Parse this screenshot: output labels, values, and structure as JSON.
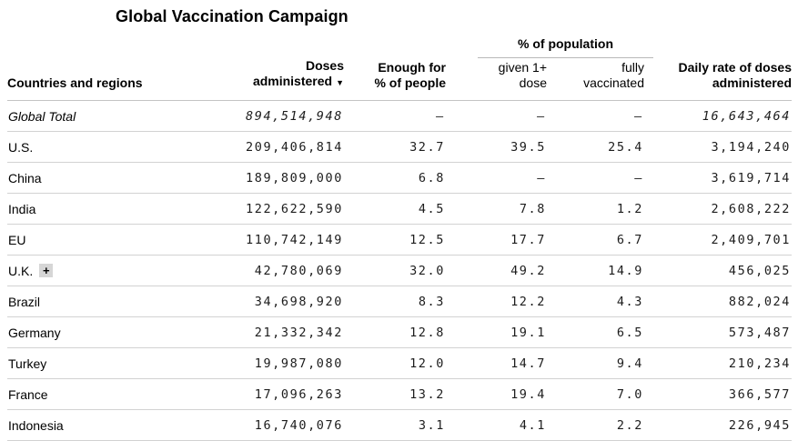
{
  "title": "Global Vaccination Campaign",
  "table": {
    "group_header": "% of population",
    "sort_icon": "▼",
    "sorted_by": "Doses administered",
    "sort_direction": "descending",
    "expand_icon": "+",
    "columns": [
      {
        "line1": "",
        "line2": "Countries and regions"
      },
      {
        "line1": "Doses",
        "line2": "administered"
      },
      {
        "line1": "Enough for",
        "line2": "% of people"
      },
      {
        "line1": "given 1+",
        "line2": "dose"
      },
      {
        "line1": "fully",
        "line2": "vaccinated"
      },
      {
        "line1": "Daily rate of doses",
        "line2": "administered"
      }
    ],
    "rows": [
      {
        "country": "Global Total",
        "doses": "894,514,948",
        "enough": "–",
        "given": "–",
        "fully": "–",
        "daily": "16,643,464",
        "italic": true
      },
      {
        "country": "U.S.",
        "doses": "209,406,814",
        "enough": "32.7",
        "given": "39.5",
        "fully": "25.4",
        "daily": "3,194,240"
      },
      {
        "country": "China",
        "doses": "189,809,000",
        "enough": "6.8",
        "given": "–",
        "fully": "–",
        "daily": "3,619,714"
      },
      {
        "country": "India",
        "doses": "122,622,590",
        "enough": "4.5",
        "given": "7.8",
        "fully": "1.2",
        "daily": "2,608,222"
      },
      {
        "country": "EU",
        "doses": "110,742,149",
        "enough": "12.5",
        "given": "17.7",
        "fully": "6.7",
        "daily": "2,409,701"
      },
      {
        "country": "U.K.",
        "expandable": true,
        "doses": "42,780,069",
        "enough": "32.0",
        "given": "49.2",
        "fully": "14.9",
        "daily": "456,025"
      },
      {
        "country": "Brazil",
        "doses": "34,698,920",
        "enough": "8.3",
        "given": "12.2",
        "fully": "4.3",
        "daily": "882,024"
      },
      {
        "country": "Germany",
        "doses": "21,332,342",
        "enough": "12.8",
        "given": "19.1",
        "fully": "6.5",
        "daily": "573,487"
      },
      {
        "country": "Turkey",
        "doses": "19,987,080",
        "enough": "12.0",
        "given": "14.7",
        "fully": "9.4",
        "daily": "210,234"
      },
      {
        "country": "France",
        "doses": "17,096,263",
        "enough": "13.2",
        "given": "19.4",
        "fully": "7.0",
        "daily": "366,577"
      },
      {
        "country": "Indonesia",
        "doses": "16,740,076",
        "enough": "3.1",
        "given": "4.1",
        "fully": "2.2",
        "daily": "226,945"
      }
    ]
  },
  "chart_data": {
    "type": "table",
    "title": "Global Vaccination Campaign",
    "columns": [
      "Countries and regions",
      "Doses administered",
      "Enough for % of people",
      "% of population given 1+ dose",
      "% of population fully vaccinated",
      "Daily rate of doses administered"
    ],
    "rows": [
      {
        "country": "Global Total",
        "doses_administered": 894514948,
        "enough_for_pct_of_people": null,
        "pct_given_1plus_dose": null,
        "pct_fully_vaccinated": null,
        "daily_rate_of_doses": 16643464
      },
      {
        "country": "U.S.",
        "doses_administered": 209406814,
        "enough_for_pct_of_people": 32.7,
        "pct_given_1plus_dose": 39.5,
        "pct_fully_vaccinated": 25.4,
        "daily_rate_of_doses": 3194240
      },
      {
        "country": "China",
        "doses_administered": 189809000,
        "enough_for_pct_of_people": 6.8,
        "pct_given_1plus_dose": null,
        "pct_fully_vaccinated": null,
        "daily_rate_of_doses": 3619714
      },
      {
        "country": "India",
        "doses_administered": 122622590,
        "enough_for_pct_of_people": 4.5,
        "pct_given_1plus_dose": 7.8,
        "pct_fully_vaccinated": 1.2,
        "daily_rate_of_doses": 2608222
      },
      {
        "country": "EU",
        "doses_administered": 110742149,
        "enough_for_pct_of_people": 12.5,
        "pct_given_1plus_dose": 17.7,
        "pct_fully_vaccinated": 6.7,
        "daily_rate_of_doses": 2409701
      },
      {
        "country": "U.K.",
        "doses_administered": 42780069,
        "enough_for_pct_of_people": 32.0,
        "pct_given_1plus_dose": 49.2,
        "pct_fully_vaccinated": 14.9,
        "daily_rate_of_doses": 456025
      },
      {
        "country": "Brazil",
        "doses_administered": 34698920,
        "enough_for_pct_of_people": 8.3,
        "pct_given_1plus_dose": 12.2,
        "pct_fully_vaccinated": 4.3,
        "daily_rate_of_doses": 882024
      },
      {
        "country": "Germany",
        "doses_administered": 21332342,
        "enough_for_pct_of_people": 12.8,
        "pct_given_1plus_dose": 19.1,
        "pct_fully_vaccinated": 6.5,
        "daily_rate_of_doses": 573487
      },
      {
        "country": "Turkey",
        "doses_administered": 19987080,
        "enough_for_pct_of_people": 12.0,
        "pct_given_1plus_dose": 14.7,
        "pct_fully_vaccinated": 9.4,
        "daily_rate_of_doses": 210234
      },
      {
        "country": "France",
        "doses_administered": 17096263,
        "enough_for_pct_of_people": 13.2,
        "pct_given_1plus_dose": 19.4,
        "pct_fully_vaccinated": 7.0,
        "daily_rate_of_doses": 366577
      },
      {
        "country": "Indonesia",
        "doses_administered": 16740076,
        "enough_for_pct_of_people": 3.1,
        "pct_given_1plus_dose": 4.1,
        "pct_fully_vaccinated": 2.2,
        "daily_rate_of_doses": 226945
      }
    ],
    "notes": {
      "sorted_by": "Doses administered",
      "sort_direction": "descending",
      "missing_value_symbol": "–",
      "grid": "horizontal rules only",
      "colors": {
        "text": "#000000",
        "row_divider": "#d2d2d2",
        "header_rule": "#c4c4c4",
        "expand_button_bg": "#d6d6d6"
      }
    }
  }
}
